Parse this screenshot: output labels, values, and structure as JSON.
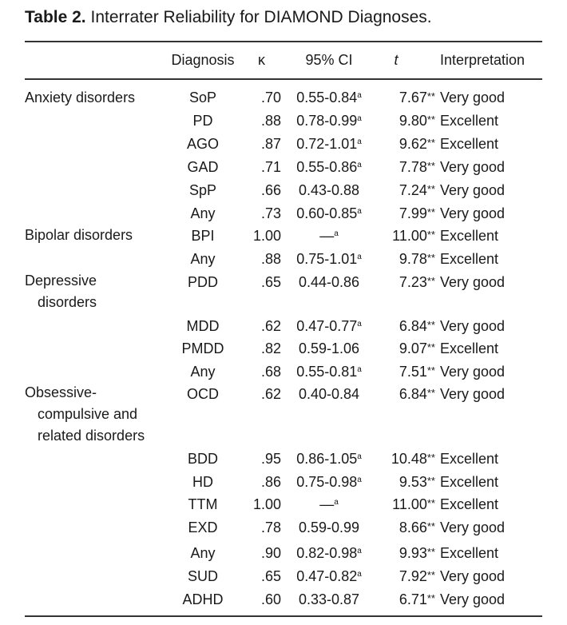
{
  "table": {
    "label": "Table 2.",
    "caption": "Interrater Reliability for DIAMOND Diagnoses.",
    "headers": {
      "diagnosis": "Diagnosis",
      "kappa": "κ",
      "ci": "95% CI",
      "t": "t",
      "interpretation": "Interpretation"
    },
    "categories": [
      {
        "lines": [
          "Anxiety disorders"
        ]
      },
      {
        "lines": [
          "Bipolar disorders"
        ]
      },
      {
        "lines": [
          "Depressive",
          "disorders"
        ]
      },
      {
        "lines": [
          "Obsessive-",
          "compulsive and",
          "related disorders"
        ]
      }
    ],
    "rows": [
      {
        "diagnosis": "SoP",
        "kappa": ".70",
        "ci": "0.55-0.84",
        "ci_sup": "a",
        "t": "7.67",
        "sig": "**",
        "interpretation": "Very good"
      },
      {
        "diagnosis": "PD",
        "kappa": ".88",
        "ci": "0.78-0.99",
        "ci_sup": "a",
        "t": "9.80",
        "sig": "**",
        "interpretation": "Excellent"
      },
      {
        "diagnosis": "AGO",
        "kappa": ".87",
        "ci": "0.72-1.01",
        "ci_sup": "a",
        "t": "9.62",
        "sig": "**",
        "interpretation": "Excellent"
      },
      {
        "diagnosis": "GAD",
        "kappa": ".71",
        "ci": "0.55-0.86",
        "ci_sup": "a",
        "t": "7.78",
        "sig": "**",
        "interpretation": "Very good"
      },
      {
        "diagnosis": "SpP",
        "kappa": ".66",
        "ci": "0.43-0.88",
        "ci_sup": "",
        "t": "7.24",
        "sig": "**",
        "interpretation": "Very good"
      },
      {
        "diagnosis": "Any",
        "kappa": ".73",
        "ci": "0.60-0.85",
        "ci_sup": "a",
        "t": "7.99",
        "sig": "**",
        "interpretation": "Very good"
      },
      {
        "diagnosis": "BPI",
        "kappa": "1.00",
        "ci": "—",
        "ci_sup": "a",
        "t": "11.00",
        "sig": "**",
        "interpretation": "Excellent"
      },
      {
        "diagnosis": "Any",
        "kappa": ".88",
        "ci": "0.75-1.01",
        "ci_sup": "a",
        "t": "9.78",
        "sig": "**",
        "interpretation": "Excellent"
      },
      {
        "diagnosis": "PDD",
        "kappa": ".65",
        "ci": "0.44-0.86",
        "ci_sup": "",
        "t": "7.23",
        "sig": "**",
        "interpretation": "Very good"
      },
      {
        "diagnosis": "MDD",
        "kappa": ".62",
        "ci": "0.47-0.77",
        "ci_sup": "a",
        "t": "6.84",
        "sig": "**",
        "interpretation": "Very good"
      },
      {
        "diagnosis": "PMDD",
        "kappa": ".82",
        "ci": "0.59-1.06",
        "ci_sup": "",
        "t": "9.07",
        "sig": "**",
        "interpretation": "Excellent"
      },
      {
        "diagnosis": "Any",
        "kappa": ".68",
        "ci": "0.55-0.81",
        "ci_sup": "a",
        "t": "7.51",
        "sig": "**",
        "interpretation": "Very good"
      },
      {
        "diagnosis": "OCD",
        "kappa": ".62",
        "ci": "0.40-0.84",
        "ci_sup": "",
        "t": "6.84",
        "sig": "**",
        "interpretation": "Very good"
      },
      {
        "diagnosis": "BDD",
        "kappa": ".95",
        "ci": "0.86-1.05",
        "ci_sup": "a",
        "t": "10.48",
        "sig": "**",
        "interpretation": "Excellent"
      },
      {
        "diagnosis": "HD",
        "kappa": ".86",
        "ci": "0.75-0.98",
        "ci_sup": "a",
        "t": "9.53",
        "sig": "**",
        "interpretation": "Excellent"
      },
      {
        "diagnosis": "TTM",
        "kappa": "1.00",
        "ci": "—",
        "ci_sup": "a",
        "t": "11.00",
        "sig": "**",
        "interpretation": "Excellent"
      },
      {
        "diagnosis": "EXD",
        "kappa": ".78",
        "ci": "0.59-0.99",
        "ci_sup": "",
        "t": "8.66",
        "sig": "**",
        "interpretation": "Very good"
      },
      {
        "diagnosis": "Any",
        "kappa": ".90",
        "ci": "0.82-0.98",
        "ci_sup": "a",
        "t": "9.93",
        "sig": "**",
        "interpretation": "Excellent"
      },
      {
        "diagnosis": "SUD",
        "kappa": ".65",
        "ci": "0.47-0.82",
        "ci_sup": "a",
        "t": "7.92",
        "sig": "**",
        "interpretation": "Very good"
      },
      {
        "diagnosis": "ADHD",
        "kappa": ".60",
        "ci": "0.33-0.87",
        "ci_sup": "",
        "t": "6.71",
        "sig": "**",
        "interpretation": "Very good"
      }
    ]
  }
}
